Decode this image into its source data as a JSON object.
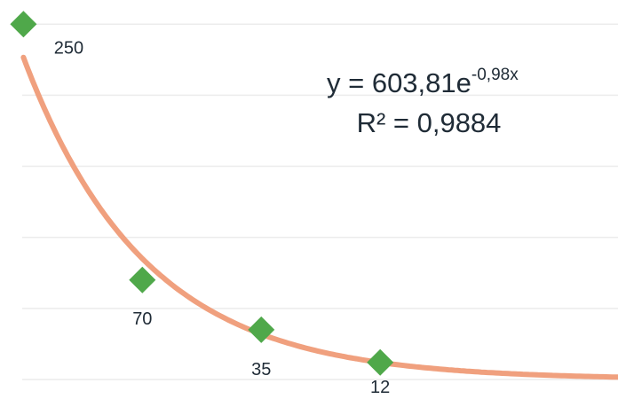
{
  "chart_data": {
    "type": "scatter",
    "x": [
      1,
      2,
      3,
      4
    ],
    "series": [
      {
        "color": "#4fa84a",
        "values": [
          250,
          70,
          35,
          12
        ]
      }
    ],
    "trendline": {
      "type": "exponential",
      "a": 603.81,
      "b": -0.98,
      "color": "#f0a07e"
    },
    "annotations": [
      "y = 603,81e",
      "-0,98x",
      "R² = 0,9884"
    ],
    "xlim": [
      0.9,
      6
    ],
    "ylim": [
      0,
      267
    ],
    "yticks": [
      0,
      50,
      100,
      150,
      200,
      250
    ],
    "grid": true
  }
}
